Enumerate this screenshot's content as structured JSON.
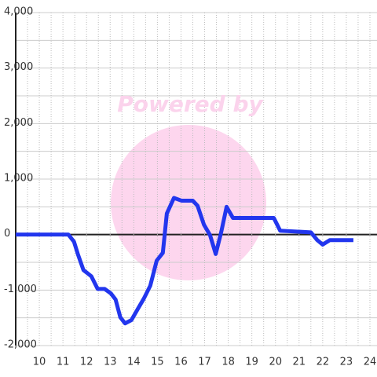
{
  "chart_data": {
    "type": "line",
    "watermark": "Powered by",
    "x": [
      9,
      11.23,
      11.47,
      11.63,
      11.87,
      12.2,
      12.47,
      12.77,
      13.03,
      13.23,
      13.43,
      13.63,
      13.9,
      14.17,
      14.43,
      14.7,
      14.97,
      15.23,
      15.4,
      15.7,
      16.03,
      16.5,
      16.7,
      16.97,
      17.23,
      17.47,
      17.7,
      17.93,
      18.2,
      18.47,
      19.93,
      20.2,
      21.5,
      21.77,
      22.0,
      22.3,
      23.3
    ],
    "series": [
      {
        "color": "#2236ee",
        "values": [
          0,
          0,
          -130,
          -350,
          -640,
          -750,
          -980,
          -980,
          -1060,
          -1170,
          -1490,
          -1600,
          -1540,
          -1340,
          -1150,
          -920,
          -470,
          -330,
          380,
          660,
          610,
          610,
          520,
          180,
          -10,
          -350,
          40,
          500,
          300,
          300,
          300,
          70,
          40,
          -100,
          -180,
          -100,
          -100
        ]
      }
    ],
    "xlim": [
      9,
      24.3
    ],
    "xticks": [
      10,
      11,
      12,
      13,
      14,
      15,
      16,
      17,
      18,
      19,
      20,
      21,
      22,
      23,
      24
    ],
    "x_minor_ticks": [
      9.5,
      10.5,
      11.5,
      12.5,
      13.5,
      14.5,
      15.5,
      16.5,
      17.5,
      18.5,
      19.5,
      20.5,
      21.5,
      22.5,
      23.5
    ],
    "ylim": [
      -2000,
      4000
    ],
    "yticks": [
      {
        "value": -2000,
        "label": "-2,000"
      },
      {
        "value": -1000,
        "label": "-1,000"
      },
      0,
      {
        "value": 1000,
        "label": "1,000"
      },
      {
        "value": 2000,
        "label": "2,000"
      },
      {
        "value": 3000,
        "label": "3,000"
      },
      {
        "value": 4000,
        "label": "4,000"
      }
    ],
    "y_minor_ticks": [
      -1500,
      -500,
      500,
      1500,
      2500,
      3500
    ],
    "grid": true
  }
}
